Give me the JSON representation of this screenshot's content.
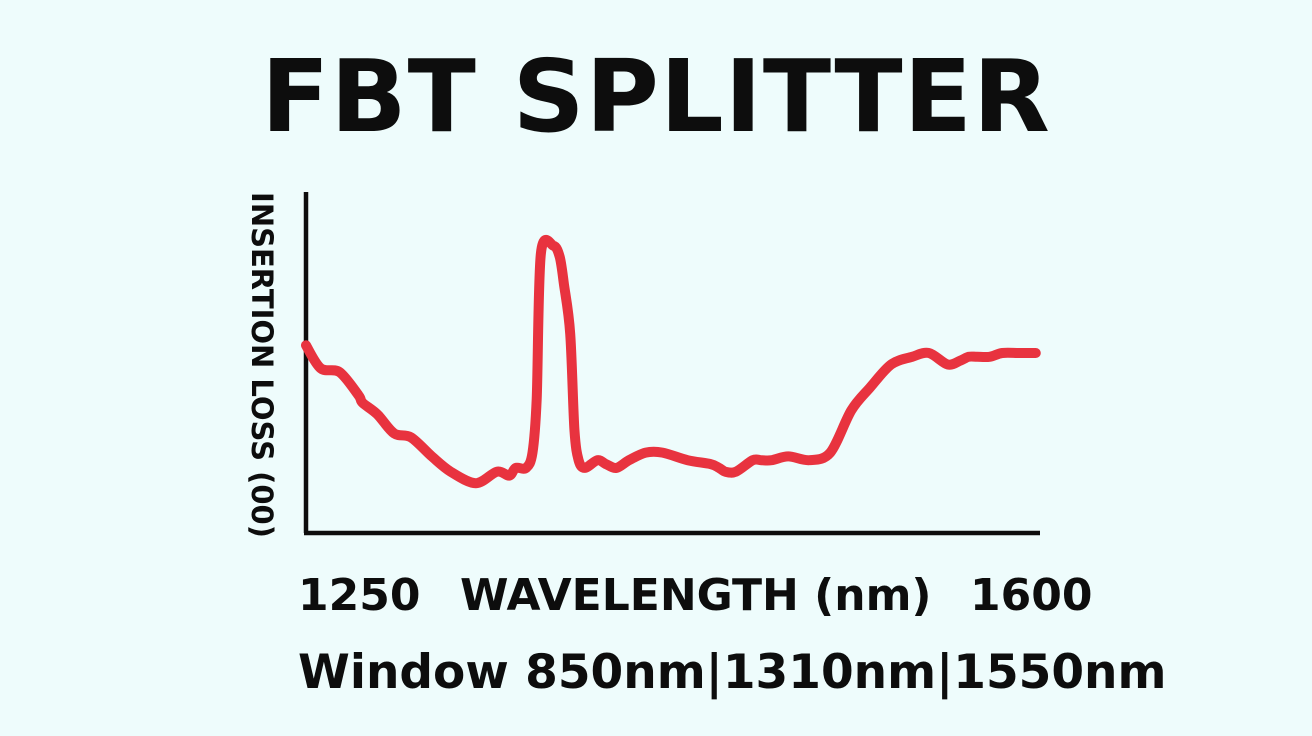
{
  "title": "FBT SPLITTER",
  "caption": "Window 850nm|1310nm|1550nm",
  "chart_data": {
    "type": "line",
    "xlabel": "WAVELENGTH (nm)",
    "ylabel": "INSERTION LOSS (00)",
    "xlim": [
      1250,
      1600
    ],
    "ylim": [
      0,
      10
    ],
    "x_tick_labels": [
      "1250",
      "1600"
    ],
    "y_ticks_shown": false,
    "grid": false,
    "legend": "none",
    "line_color": "#e8333f",
    "axis_color": "#0d0d0d",
    "series": [
      {
        "x": [
          1250,
          1257,
          1266,
          1275,
          1277,
          1284,
          1292,
          1300,
          1310,
          1319,
          1331,
          1341,
          1347,
          1350,
          1355,
          1358,
          1360,
          1362,
          1368,
          1371,
          1373,
          1376,
          1378,
          1380,
          1383,
          1389,
          1393,
          1398,
          1404,
          1412,
          1420,
          1432,
          1443,
          1447,
          1450,
          1455,
          1463,
          1467,
          1472,
          1480,
          1490,
          1500,
          1510,
          1519,
          1529,
          1539,
          1547,
          1556,
          1562,
          1566,
          1570,
          1576,
          1582,
          1590,
          1598
        ],
        "y": [
          4.9,
          4.3,
          4.2,
          3.6,
          3.4,
          3.1,
          2.6,
          2.5,
          2.0,
          1.6,
          1.3,
          1.6,
          1.5,
          1.7,
          1.7,
          2.1,
          3.5,
          7.3,
          7.5,
          7.2,
          6.5,
          5.2,
          2.7,
          1.9,
          1.7,
          1.9,
          1.8,
          1.7,
          1.9,
          2.1,
          2.1,
          1.9,
          1.8,
          1.7,
          1.6,
          1.6,
          1.9,
          1.9,
          1.9,
          2.0,
          1.9,
          2.1,
          3.2,
          3.8,
          4.4,
          4.6,
          4.7,
          4.4,
          4.5,
          4.6,
          4.6,
          4.6,
          4.7,
          4.7,
          4.7
        ]
      }
    ]
  }
}
